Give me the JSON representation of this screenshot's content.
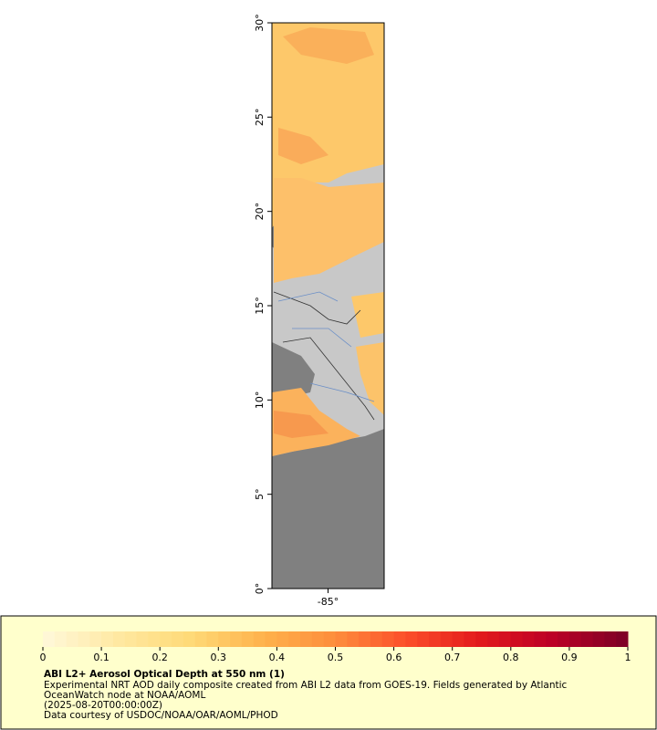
{
  "map": {
    "latlim": [
      0,
      30
    ],
    "lonlim": [
      -88,
      -82
    ],
    "lat_ticks": [
      {
        "value": 0,
        "label": "0°"
      },
      {
        "value": 5,
        "label": "5°"
      },
      {
        "value": 10,
        "label": "10°"
      },
      {
        "value": 15,
        "label": "15°"
      },
      {
        "value": 20,
        "label": "20°"
      },
      {
        "value": 25,
        "label": "25°"
      },
      {
        "value": 30,
        "label": "30°"
      }
    ],
    "lon_ticks": [
      {
        "value": -85,
        "label": "-85°"
      }
    ]
  },
  "colorbar": {
    "lim": [
      0,
      1
    ],
    "ticks": [
      0,
      0.1,
      0.2,
      0.3,
      0.4,
      0.5,
      0.6,
      0.7,
      0.8,
      0.9,
      1
    ],
    "colors": [
      "#fff7d6",
      "#ffe8a0",
      "#fed976",
      "#feb24c",
      "#fd8d3c",
      "#fc4e2a",
      "#e31a1c",
      "#bd0026",
      "#800026"
    ]
  },
  "legend": {
    "title": "ABI L2+ Aerosol Optical Depth at 550 nm (1)",
    "lines": [
      "Experimental NRT AOD daily composite created from ABI L2 data from GOES-19. Fields generated by Atlantic",
      "OceanWatch node at NOAA/AOML",
      "(2025-08-20T00:00:00Z)",
      "Data courtesy of USDOC/NOAA/OAR/AOML/PHOD"
    ]
  }
}
